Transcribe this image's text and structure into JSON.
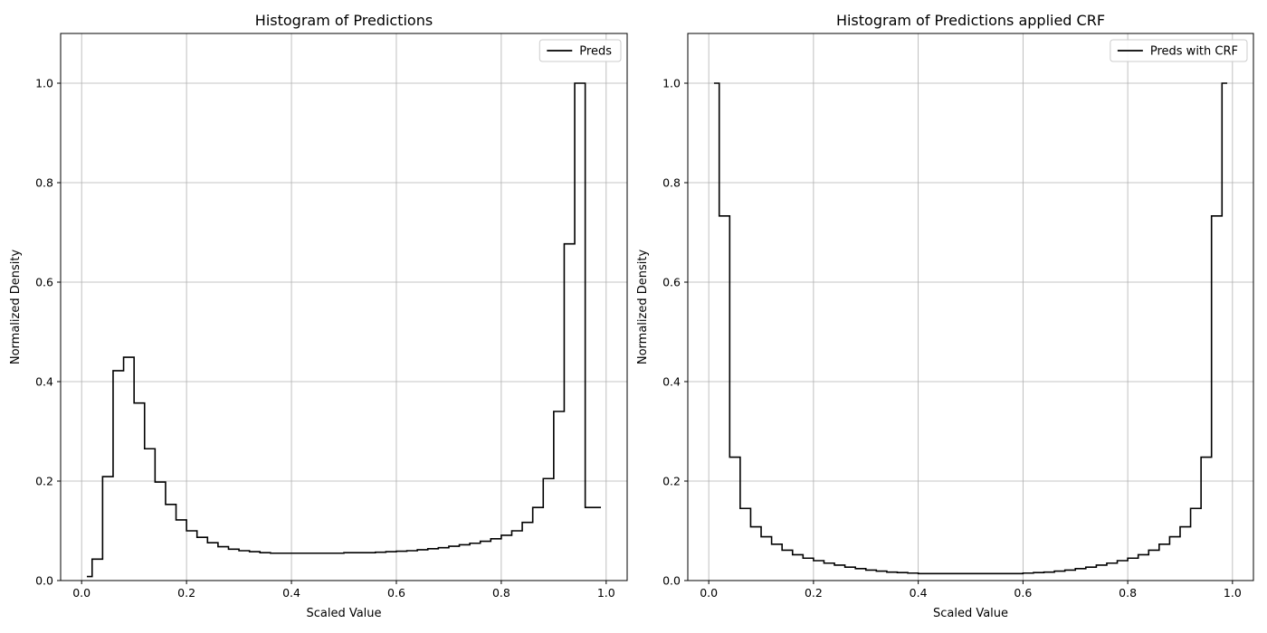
{
  "chart_data": [
    {
      "type": "line",
      "title": "Histogram of Predictions",
      "xlabel": "Scaled Value",
      "ylabel": "Normalized Density",
      "xlim": [
        -0.04,
        1.04
      ],
      "ylim": [
        0,
        1.1
      ],
      "xticks": [
        "0.0",
        "0.2",
        "0.4",
        "0.6",
        "0.8",
        "1.0"
      ],
      "yticks": [
        "0.0",
        "0.2",
        "0.4",
        "0.6",
        "0.8",
        "1.0"
      ],
      "grid": true,
      "legend_position": "upper right",
      "series": [
        {
          "name": "Preds",
          "color": "#000000",
          "x": [
            0.01,
            0.03,
            0.05,
            0.07,
            0.09,
            0.11,
            0.13,
            0.15,
            0.17,
            0.19,
            0.21,
            0.23,
            0.25,
            0.27,
            0.29,
            0.31,
            0.33,
            0.35,
            0.37,
            0.39,
            0.41,
            0.43,
            0.45,
            0.47,
            0.49,
            0.51,
            0.53,
            0.55,
            0.57,
            0.59,
            0.61,
            0.63,
            0.65,
            0.67,
            0.69,
            0.71,
            0.73,
            0.75,
            0.77,
            0.79,
            0.81,
            0.83,
            0.85,
            0.87,
            0.89,
            0.91,
            0.93,
            0.95,
            0.97,
            0.99
          ],
          "y": [
            0.008,
            0.043,
            0.209,
            0.422,
            0.449,
            0.357,
            0.265,
            0.198,
            0.153,
            0.122,
            0.1,
            0.087,
            0.076,
            0.068,
            0.063,
            0.06,
            0.058,
            0.056,
            0.055,
            0.055,
            0.055,
            0.055,
            0.055,
            0.055,
            0.055,
            0.056,
            0.056,
            0.056,
            0.057,
            0.058,
            0.059,
            0.06,
            0.062,
            0.064,
            0.066,
            0.069,
            0.072,
            0.075,
            0.079,
            0.084,
            0.091,
            0.1,
            0.117,
            0.147,
            0.205,
            0.34,
            0.677,
            1.0,
            0.147,
            0.147
          ]
        }
      ]
    },
    {
      "type": "line",
      "title": "Histogram of Predictions applied CRF",
      "xlabel": "Scaled Value",
      "ylabel": "Normalized Density",
      "xlim": [
        -0.04,
        1.04
      ],
      "ylim": [
        0,
        1.1
      ],
      "xticks": [
        "0.0",
        "0.2",
        "0.4",
        "0.6",
        "0.8",
        "1.0"
      ],
      "yticks": [
        "0.0",
        "0.2",
        "0.4",
        "0.6",
        "0.8",
        "1.0"
      ],
      "grid": true,
      "legend_position": "upper right",
      "series": [
        {
          "name": "Preds with CRF",
          "color": "#000000",
          "x": [
            0.01,
            0.03,
            0.05,
            0.07,
            0.09,
            0.11,
            0.13,
            0.15,
            0.17,
            0.19,
            0.21,
            0.23,
            0.25,
            0.27,
            0.29,
            0.31,
            0.33,
            0.35,
            0.37,
            0.39,
            0.41,
            0.43,
            0.45,
            0.47,
            0.49,
            0.51,
            0.53,
            0.55,
            0.57,
            0.59,
            0.61,
            0.63,
            0.65,
            0.67,
            0.69,
            0.71,
            0.73,
            0.75,
            0.77,
            0.79,
            0.81,
            0.83,
            0.85,
            0.87,
            0.89,
            0.91,
            0.93,
            0.95,
            0.97,
            0.99
          ],
          "y": [
            1.0,
            0.733,
            0.248,
            0.145,
            0.108,
            0.088,
            0.073,
            0.061,
            0.052,
            0.045,
            0.04,
            0.035,
            0.031,
            0.027,
            0.024,
            0.021,
            0.019,
            0.017,
            0.016,
            0.015,
            0.014,
            0.014,
            0.014,
            0.014,
            0.014,
            0.014,
            0.014,
            0.014,
            0.014,
            0.014,
            0.015,
            0.016,
            0.017,
            0.019,
            0.021,
            0.024,
            0.027,
            0.031,
            0.035,
            0.04,
            0.045,
            0.052,
            0.061,
            0.073,
            0.088,
            0.108,
            0.145,
            0.248,
            0.733,
            1.0
          ]
        }
      ]
    }
  ]
}
